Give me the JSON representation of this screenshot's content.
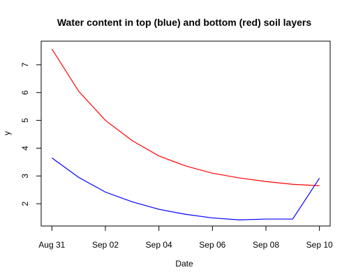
{
  "chart_data": {
    "type": "line",
    "title": "Water content in top (blue) and bottom (red) soil layers",
    "xlabel": "Date",
    "ylabel": "y",
    "x": [
      "2009-08-31",
      "2009-09-01",
      "2009-09-02",
      "2009-09-03",
      "2009-09-04",
      "2009-09-05",
      "2009-09-06",
      "2009-09-07",
      "2009-09-08",
      "2009-09-09",
      "2009-09-10"
    ],
    "x_ticks": [
      {
        "date": "2009-08-31",
        "label": "Aug 31"
      },
      {
        "date": "2009-09-02",
        "label": "Sep 02"
      },
      {
        "date": "2009-09-04",
        "label": "Sep 04"
      },
      {
        "date": "2009-09-06",
        "label": "Sep 06"
      },
      {
        "date": "2009-09-08",
        "label": "Sep 08"
      },
      {
        "date": "2009-09-10",
        "label": "Sep 10"
      }
    ],
    "xlim": [
      "2009-08-30T14:24",
      "2009-09-10T09:36"
    ],
    "y_ticks": [
      2,
      3,
      4,
      5,
      6,
      7
    ],
    "ylim": [
      1.2,
      7.85
    ],
    "grid": false,
    "series": [
      {
        "color": "#ff0000",
        "values": [
          7.57,
          6.05,
          5.0,
          4.27,
          3.72,
          3.36,
          3.1,
          2.93,
          2.8,
          2.7,
          2.65
        ]
      },
      {
        "color": "#0000ff",
        "values": [
          3.65,
          2.95,
          2.42,
          2.07,
          1.8,
          1.62,
          1.49,
          1.42,
          1.45,
          1.45,
          2.92
        ]
      }
    ]
  }
}
